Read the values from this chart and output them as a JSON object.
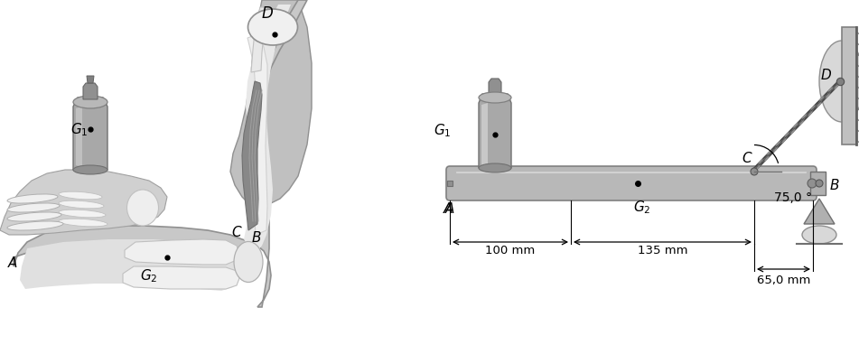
{
  "bg": "#ffffff",
  "fw": 9.51,
  "fh": 3.92,
  "dpi": 100,
  "arm_outer": "#c8c8c8",
  "arm_inner": "#e0e0e0",
  "arm_skin": "#d4d4d4",
  "bone_white": "#f2f2f2",
  "bone_edge": "#c0c0c0",
  "muscle_dark": "#888888",
  "muscle_light": "#b0b0b0",
  "upper_arm_bg": "#bebebe",
  "can_body": "#a8a8a8",
  "can_dark": "#888888",
  "can_light": "#c8c8c8",
  "beam_face": "#b0b0b0",
  "beam_edge": "#808080",
  "roller_face": "#c0c0c0",
  "wall_face": "#b8b8b8",
  "cable_dark": "#505050",
  "cable_light": "#909090",
  "dim_color": "#000000",
  "angle_text": "75,0 °",
  "label_100": "100 mm",
  "label_135": "135 mm",
  "label_65": "65,0 mm"
}
